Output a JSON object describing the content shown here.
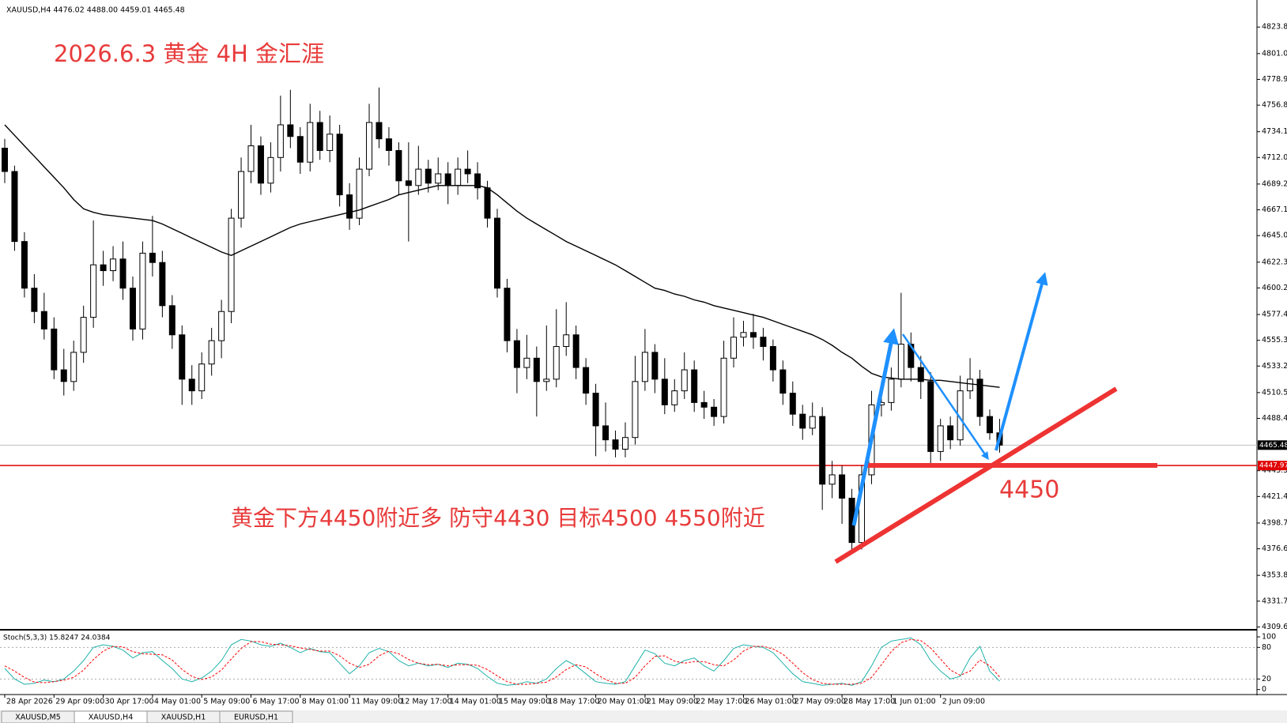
{
  "chart_data": {
    "type": "candlestick",
    "symbol_header": "XAUUSD,H4  4476.02 4488.00 4459.01 4465.48",
    "title": "2026.6.3 黄金 4H 金汇涯",
    "annotation": "黄金下方4450附近多 防守4430 目标4500 4550附近",
    "level_note": "4450",
    "categories": [
      "28 Apr 2026",
      null,
      null,
      null,
      null,
      "29 Apr 09:00",
      null,
      null,
      null,
      null,
      "30 Apr 17:00",
      null,
      null,
      null,
      null,
      "4 May 01:00",
      null,
      null,
      null,
      null,
      "5 May 09:00",
      null,
      null,
      null,
      null,
      "6 May 17:00",
      null,
      null,
      null,
      null,
      "8 May 01:00",
      null,
      null,
      null,
      null,
      "11 May 09:00",
      null,
      null,
      null,
      null,
      "12 May 17:00",
      null,
      null,
      null,
      null,
      "14 May 01:00",
      null,
      null,
      null,
      null,
      "15 May 09:00",
      null,
      null,
      null,
      null,
      "18 May 17:00",
      null,
      null,
      null,
      null,
      "20 May 01:00",
      null,
      null,
      null,
      null,
      "21 May 09:00",
      null,
      null,
      null,
      null,
      "22 May 17:00",
      null,
      null,
      null,
      null,
      "26 May 01:00",
      null,
      null,
      null,
      null,
      "27 May 09:00",
      null,
      null,
      null,
      null,
      "28 May 17:00",
      null,
      null,
      null,
      null,
      "1 Jun 01:00",
      null,
      null,
      null,
      null,
      "2 Jun 09:00",
      null,
      null,
      null,
      null,
      null,
      null
    ],
    "candles": [
      [
        4720,
        4728,
        4690,
        4700
      ],
      [
        4700,
        4705,
        4632,
        4640
      ],
      [
        4640,
        4648,
        4592,
        4600
      ],
      [
        4600,
        4612,
        4570,
        4580
      ],
      [
        4580,
        4596,
        4556,
        4565
      ],
      [
        4565,
        4575,
        4522,
        4530
      ],
      [
        4530,
        4548,
        4508,
        4520
      ],
      [
        4520,
        4555,
        4512,
        4545
      ],
      [
        4545,
        4585,
        4536,
        4575
      ],
      [
        4575,
        4658,
        4566,
        4620
      ],
      [
        4620,
        4632,
        4602,
        4615
      ],
      [
        4615,
        4636,
        4606,
        4625
      ],
      [
        4625,
        4640,
        4590,
        4600
      ],
      [
        4600,
        4610,
        4555,
        4565
      ],
      [
        4565,
        4640,
        4556,
        4630
      ],
      [
        4630,
        4662,
        4610,
        4622
      ],
      [
        4622,
        4632,
        4575,
        4585
      ],
      [
        4585,
        4594,
        4548,
        4560
      ],
      [
        4560,
        4568,
        4500,
        4522
      ],
      [
        4522,
        4534,
        4500,
        4512
      ],
      [
        4512,
        4545,
        4505,
        4535
      ],
      [
        4535,
        4566,
        4525,
        4555
      ],
      [
        4555,
        4590,
        4540,
        4580
      ],
      [
        4580,
        4668,
        4570,
        4660
      ],
      [
        4660,
        4712,
        4652,
        4700
      ],
      [
        4700,
        4740,
        4690,
        4722
      ],
      [
        4722,
        4730,
        4680,
        4690
      ],
      [
        4690,
        4725,
        4682,
        4712
      ],
      [
        4712,
        4765,
        4700,
        4740
      ],
      [
        4740,
        4770,
        4720,
        4730
      ],
      [
        4730,
        4738,
        4698,
        4708
      ],
      [
        4708,
        4758,
        4700,
        4742
      ],
      [
        4742,
        4752,
        4710,
        4718
      ],
      [
        4718,
        4748,
        4708,
        4732
      ],
      [
        4732,
        4740,
        4670,
        4680
      ],
      [
        4680,
        4690,
        4650,
        4660
      ],
      [
        4660,
        4712,
        4654,
        4702
      ],
      [
        4702,
        4758,
        4696,
        4742
      ],
      [
        4742,
        4772,
        4720,
        4728
      ],
      [
        4728,
        4738,
        4705,
        4718
      ],
      [
        4718,
        4725,
        4680,
        4692
      ],
      [
        4692,
        4725,
        4640,
        4688
      ],
      [
        4688,
        4722,
        4680,
        4702
      ],
      [
        4702,
        4710,
        4682,
        4690
      ],
      [
        4690,
        4712,
        4684,
        4698
      ],
      [
        4698,
        4708,
        4672,
        4688
      ],
      [
        4688,
        4712,
        4680,
        4702
      ],
      [
        4702,
        4718,
        4690,
        4698
      ],
      [
        4698,
        4708,
        4676,
        4686
      ],
      [
        4686,
        4692,
        4652,
        4660
      ],
      [
        4660,
        4668,
        4592,
        4600
      ],
      [
        4600,
        4608,
        4545,
        4555
      ],
      [
        4555,
        4565,
        4510,
        4532
      ],
      [
        4532,
        4560,
        4522,
        4540
      ],
      [
        4540,
        4550,
        4490,
        4520
      ],
      [
        4520,
        4568,
        4512,
        4522
      ],
      [
        4522,
        4582,
        4515,
        4550
      ],
      [
        4550,
        4588,
        4542,
        4560
      ],
      [
        4560,
        4568,
        4522,
        4532
      ],
      [
        4532,
        4540,
        4500,
        4510
      ],
      [
        4510,
        4518,
        4456,
        4482
      ],
      [
        4482,
        4502,
        4460,
        4470
      ],
      [
        4470,
        4478,
        4455,
        4462
      ],
      [
        4462,
        4485,
        4455,
        4472
      ],
      [
        4472,
        4542,
        4466,
        4520
      ],
      [
        4520,
        4565,
        4512,
        4545
      ],
      [
        4545,
        4552,
        4510,
        4522
      ],
      [
        4522,
        4540,
        4492,
        4500
      ],
      [
        4500,
        4522,
        4494,
        4512
      ],
      [
        4512,
        4545,
        4505,
        4530
      ],
      [
        4530,
        4538,
        4494,
        4502
      ],
      [
        4502,
        4512,
        4488,
        4498
      ],
      [
        4498,
        4505,
        4482,
        4490
      ],
      [
        4490,
        4555,
        4484,
        4540
      ],
      [
        4540,
        4575,
        4532,
        4558
      ],
      [
        4558,
        4572,
        4550,
        4562
      ],
      [
        4562,
        4578,
        4548,
        4558
      ],
      [
        4558,
        4566,
        4538,
        4550
      ],
      [
        4550,
        4556,
        4520,
        4530
      ],
      [
        4530,
        4538,
        4500,
        4510
      ],
      [
        4510,
        4520,
        4482,
        4492
      ],
      [
        4492,
        4500,
        4470,
        4480
      ],
      [
        4480,
        4502,
        4474,
        4490
      ],
      [
        4490,
        4498,
        4410,
        4432
      ],
      [
        4432,
        4452,
        4420,
        4440
      ],
      [
        4440,
        4448,
        4398,
        4420
      ],
      [
        4420,
        4428,
        4372,
        4382
      ],
      [
        4382,
        4448,
        4376,
        4440
      ],
      [
        4440,
        4512,
        4432,
        4500
      ],
      [
        4500,
        4520,
        4490,
        4502
      ],
      [
        4502,
        4532,
        4495,
        4522
      ],
      [
        4522,
        4596,
        4515,
        4552
      ],
      [
        4552,
        4562,
        4520,
        4532
      ],
      [
        4532,
        4542,
        4505,
        4520
      ],
      [
        4520,
        4528,
        4450,
        4460
      ],
      [
        4460,
        4488,
        4452,
        4482
      ],
      [
        4482,
        4490,
        4462,
        4470
      ],
      [
        4470,
        4525,
        4465,
        4512
      ],
      [
        4512,
        4540,
        4505,
        4522
      ],
      [
        4522,
        4530,
        4482,
        4490
      ],
      [
        4490,
        4496,
        4470,
        4476.02
      ],
      [
        4476.02,
        4488,
        4459.01,
        4465.48
      ]
    ],
    "ma": {
      "color": "#000000",
      "values": [
        4740,
        4731,
        4722,
        4713,
        4704,
        4695,
        4686,
        4676,
        4668,
        4665,
        4663,
        4662,
        4661,
        4660,
        4659,
        4658,
        4655,
        4651,
        4647,
        4643,
        4639,
        4635,
        4631,
        4628,
        4632,
        4636,
        4640,
        4644,
        4648,
        4652,
        4655,
        4657,
        4659,
        4661,
        4663,
        4665,
        4667,
        4670,
        4673,
        4676,
        4680,
        4682,
        4684,
        4686,
        4688,
        4688,
        4688,
        4688,
        4688,
        4686,
        4680,
        4673,
        4666,
        4660,
        4655,
        4650,
        4645,
        4640,
        4636,
        4632,
        4628,
        4624,
        4620,
        4615,
        4610,
        4605,
        4600,
        4598,
        4595,
        4593,
        4590,
        4588,
        4585,
        4583,
        4581,
        4579,
        4577,
        4575,
        4572,
        4569,
        4566,
        4563,
        4560,
        4556,
        4551,
        4545,
        4540,
        4533,
        4527,
        4524,
        4523,
        4522,
        4522,
        4522,
        4521,
        4521,
        4520,
        4519,
        4518,
        4517,
        4516,
        4515
      ]
    },
    "ylim": [
      4307.9,
      4843.6
    ],
    "yticks": [
      {
        "value": 4823.8,
        "label": "4823.80"
      },
      {
        "value": 4801.05,
        "label": "4801.05"
      },
      {
        "value": 4778.95,
        "label": "4778.95"
      },
      {
        "value": 4756.85,
        "label": "4756.85"
      },
      {
        "value": 4734.1,
        "label": "4734.10"
      },
      {
        "value": 4712,
        "label": "4712.00"
      },
      {
        "value": 4689.25,
        "label": "4689.25"
      },
      {
        "value": 4667.15,
        "label": "4667.15"
      },
      {
        "value": 4645.05,
        "label": "4645.05"
      },
      {
        "value": 4622.3,
        "label": "4622.30"
      },
      {
        "value": 4600.2,
        "label": "4600.20"
      },
      {
        "value": 4577.45,
        "label": "4577.45"
      },
      {
        "value": 4555.35,
        "label": "4555.35"
      },
      {
        "value": 4533.25,
        "label": "4533.25"
      },
      {
        "value": 4510.5,
        "label": "4510.50"
      },
      {
        "value": 4488.4,
        "label": "4488.40"
      },
      {
        "value": 4443.55,
        "label": "4443.55"
      },
      {
        "value": 4421.45,
        "label": "4421.45"
      },
      {
        "value": 4398.7,
        "label": "4398.70"
      },
      {
        "value": 4376.6,
        "label": "4376.60"
      },
      {
        "value": 4353.85,
        "label": "4353.85"
      },
      {
        "value": 4331.75,
        "label": "4331.75"
      },
      {
        "value": 4309.65,
        "label": "4309.65"
      }
    ],
    "bid_line": {
      "value": 4465.48,
      "label": "4465.48"
    },
    "level_line": {
      "value": 4447.97,
      "label": "4447.97",
      "color": "#e00000"
    },
    "indicator": {
      "name": "Stoch(5,3,3) 15.8247 24.0384",
      "ylim": [
        -8,
        112
      ],
      "yticks": [
        100,
        80,
        20,
        0
      ],
      "series": [
        {
          "color": "#20b2aa",
          "dash": false,
          "values": [
            40,
            20,
            10,
            12,
            18,
            15,
            20,
            35,
            55,
            80,
            85,
            82,
            75,
            60,
            70,
            72,
            55,
            40,
            20,
            15,
            22,
            35,
            55,
            85,
            95,
            92,
            85,
            82,
            88,
            80,
            70,
            78,
            72,
            70,
            50,
            30,
            45,
            70,
            78,
            72,
            55,
            45,
            50,
            45,
            48,
            42,
            50,
            48,
            40,
            25,
            12,
            8,
            10,
            15,
            12,
            20,
            40,
            55,
            45,
            30,
            15,
            12,
            10,
            15,
            45,
            75,
            68,
            50,
            45,
            55,
            60,
            45,
            35,
            55,
            78,
            85,
            82,
            80,
            70,
            50,
            30,
            15,
            12,
            8,
            10,
            12,
            8,
            15,
            45,
            80,
            92,
            95,
            98,
            85,
            55,
            35,
            20,
            25,
            60,
            82,
            35,
            15.8247
          ]
        },
        {
          "color": "#ff0000",
          "dash": true,
          "values": [
            45,
            35,
            23,
            14,
            13,
            15,
            18,
            23,
            37,
            57,
            73,
            82,
            81,
            72,
            68,
            67,
            66,
            56,
            38,
            25,
            19,
            24,
            37,
            58,
            78,
            91,
            91,
            86,
            85,
            83,
            79,
            76,
            73,
            73,
            64,
            50,
            42,
            48,
            64,
            73,
            68,
            57,
            50,
            47,
            48,
            45,
            47,
            47,
            46,
            38,
            26,
            15,
            10,
            10,
            12,
            14,
            24,
            38,
            47,
            43,
            30,
            19,
            12,
            12,
            23,
            45,
            63,
            64,
            54,
            50,
            53,
            53,
            47,
            45,
            56,
            73,
            82,
            82,
            77,
            67,
            50,
            32,
            19,
            12,
            10,
            10,
            10,
            12,
            23,
            47,
            72,
            89,
            95,
            93,
            79,
            58,
            37,
            27,
            35,
            56,
            45,
            24.0384
          ]
        }
      ]
    },
    "tabs": [
      "XAUUSD,M5",
      "XAUUSD,H4",
      "XAUUSD,H1",
      "EURUSD,H1"
    ],
    "active_tab": 1
  }
}
